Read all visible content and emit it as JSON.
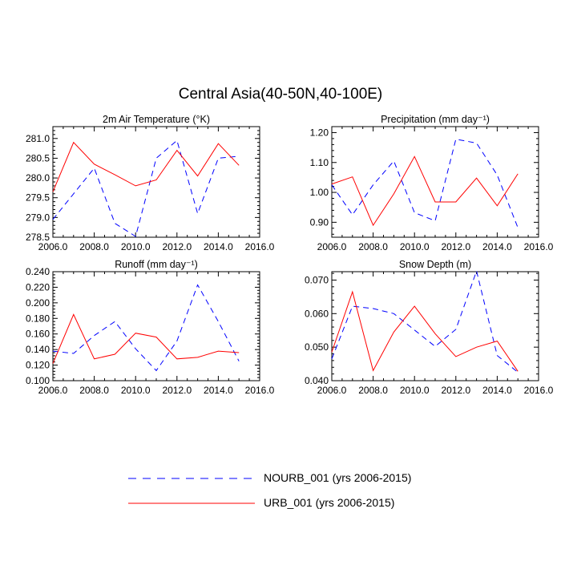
{
  "title": "Central Asia(40-50N,40-100E)",
  "legend": {
    "items": [
      {
        "label": "NOURB_001 (yrs 2006-2015)",
        "color": "#0000ff",
        "style": "dashed"
      },
      {
        "label": "URB_001 (yrs 2006-2015)",
        "color": "#ff0000",
        "style": "solid"
      }
    ]
  },
  "chart_data": [
    {
      "type": "line",
      "title": "2m Air Temperature (°K)",
      "x": [
        2006,
        2007,
        2008,
        2009,
        2010,
        2011,
        2012,
        2013,
        2014,
        2015
      ],
      "xlim": [
        2006,
        2016
      ],
      "xticks": [
        "2006.0",
        "2008.0",
        "2010.0",
        "2012.0",
        "2014.0",
        "2016.0"
      ],
      "ylim": [
        278.5,
        281.3
      ],
      "yticks": [
        "278.5",
        "279.0",
        "279.5",
        "280.0",
        "280.5",
        "281.0"
      ],
      "series": [
        {
          "name": "NOURB_001 (yrs 2006-2015)",
          "values": [
            278.95,
            279.6,
            280.25,
            278.85,
            278.52,
            280.5,
            280.95,
            279.1,
            280.5,
            280.55
          ]
        },
        {
          "name": "URB_001 (yrs 2006-2015)",
          "values": [
            279.65,
            280.9,
            280.35,
            280.08,
            279.8,
            279.95,
            280.7,
            280.05,
            280.87,
            280.32
          ]
        }
      ]
    },
    {
      "type": "line",
      "title": "Precipitation (mm day⁻¹)",
      "x": [
        2006,
        2007,
        2008,
        2009,
        2010,
        2011,
        2012,
        2013,
        2014,
        2015
      ],
      "xlim": [
        2006,
        2016
      ],
      "xticks": [
        "2006.0",
        "2008.0",
        "2010.0",
        "2012.0",
        "2014.0",
        "2016.0"
      ],
      "ylim": [
        0.85,
        1.22
      ],
      "yticks": [
        "0.90",
        "1.00",
        "1.10",
        "1.20"
      ],
      "series": [
        {
          "name": "NOURB_001 (yrs 2006-2015)",
          "values": [
            1.025,
            0.925,
            1.025,
            1.105,
            0.932,
            0.905,
            1.178,
            1.165,
            1.058,
            0.882
          ]
        },
        {
          "name": "URB_001 (yrs 2006-2015)",
          "values": [
            1.028,
            1.052,
            0.89,
            0.995,
            1.12,
            0.968,
            0.968,
            1.048,
            0.955,
            1.062
          ]
        }
      ]
    },
    {
      "type": "line",
      "title": "Runoff (mm day⁻¹)",
      "x": [
        2006,
        2007,
        2008,
        2009,
        2010,
        2011,
        2012,
        2013,
        2014,
        2015
      ],
      "xlim": [
        2006,
        2016
      ],
      "xticks": [
        "2006.0",
        "2008.0",
        "2010.0",
        "2012.0",
        "2014.0",
        "2016.0"
      ],
      "ylim": [
        0.1,
        0.24
      ],
      "yticks": [
        "0.100",
        "0.120",
        "0.140",
        "0.160",
        "0.180",
        "0.200",
        "0.220",
        "0.240"
      ],
      "series": [
        {
          "name": "NOURB_001 (yrs 2006-2015)",
          "values": [
            0.138,
            0.135,
            0.158,
            0.176,
            0.141,
            0.113,
            0.151,
            0.223,
            0.176,
            0.125
          ]
        },
        {
          "name": "URB_001 (yrs 2006-2015)",
          "values": [
            0.122,
            0.185,
            0.128,
            0.134,
            0.161,
            0.156,
            0.128,
            0.13,
            0.138,
            0.136
          ]
        }
      ]
    },
    {
      "type": "line",
      "title": "Snow Depth (m)",
      "x": [
        2006,
        2007,
        2008,
        2009,
        2010,
        2011,
        2012,
        2013,
        2014,
        2015
      ],
      "xlim": [
        2006,
        2016
      ],
      "xticks": [
        "2006.0",
        "2008.0",
        "2010.0",
        "2012.0",
        "2014.0",
        "2016.0"
      ],
      "ylim": [
        0.04,
        0.0725
      ],
      "yticks": [
        "0.040",
        "0.050",
        "0.060",
        "0.070"
      ],
      "series": [
        {
          "name": "NOURB_001 (yrs 2006-2015)",
          "values": [
            0.0465,
            0.0622,
            0.0615,
            0.06,
            0.0551,
            0.0502,
            0.0553,
            0.0727,
            0.0475,
            0.0425
          ]
        },
        {
          "name": "URB_001 (yrs 2006-2015)",
          "values": [
            0.0485,
            0.0665,
            0.043,
            0.0545,
            0.0622,
            0.054,
            0.0472,
            0.05,
            0.0518,
            0.0428
          ]
        }
      ]
    }
  ]
}
